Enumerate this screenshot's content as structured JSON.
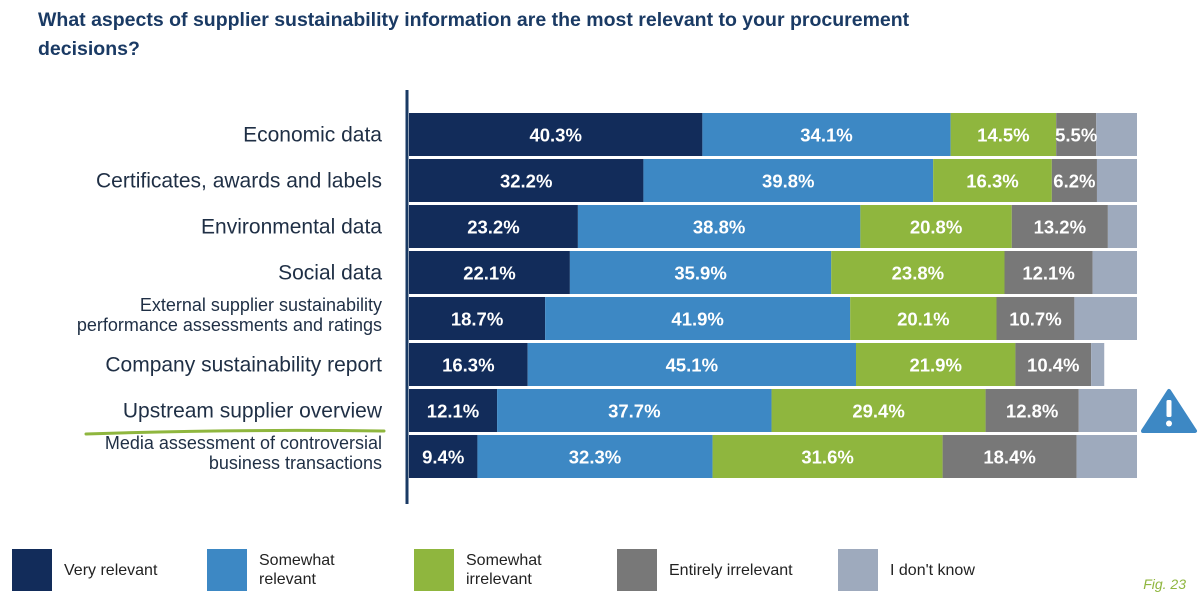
{
  "title": "What aspects of supplier sustainability information are the most relevant to your procurement decisions?",
  "figure_label": "Fig. 23",
  "colors": {
    "very_relevant": "#122c5a",
    "somewhat_relevant": "#3d88c4",
    "somewhat_irrelevant": "#8fb63e",
    "entirely_irrelevant": "#787878",
    "dont_know": "#9eaabd",
    "axis": "#1a3a64",
    "highlight_underline": "#8fb63e",
    "warning": "#3d88c4"
  },
  "legend": [
    {
      "key": "very_relevant",
      "label": "Very relevant"
    },
    {
      "key": "somewhat_relevant",
      "label": "Somewhat relevant"
    },
    {
      "key": "somewhat_irrelevant",
      "label": "Somewhat irrelevant"
    },
    {
      "key": "entirely_irrelevant",
      "label": "Entirely irrelevant"
    },
    {
      "key": "dont_know",
      "label": "I don't know"
    }
  ],
  "chart_data": {
    "type": "bar",
    "orientation": "horizontal",
    "stacked": true,
    "normalized_percent": true,
    "title": "What aspects of supplier sustainability information are the most relevant to your procurement decisions?",
    "xlim": [
      0,
      100
    ],
    "highlighted_category": "Upstream supplier overview",
    "warning_icon_category": "Upstream supplier overview",
    "categories": [
      "Economic data",
      "Certificates, awards and labels",
      "Environmental data",
      "Social data",
      "External supplier sustainability performance assessments and ratings",
      "Company sustainability report",
      "Upstream supplier overview",
      "Media assessment of controversial business transactions"
    ],
    "category_lines": [
      [
        "Economic data"
      ],
      [
        "Certificates, awards and labels"
      ],
      [
        "Environmental data"
      ],
      [
        "Social data"
      ],
      [
        "External supplier sustainability",
        "performance assessments and ratings"
      ],
      [
        "Company sustainability report"
      ],
      [
        "Upstream supplier overview"
      ],
      [
        "Media assessment of controversial",
        "business transactions"
      ]
    ],
    "series": [
      {
        "name": "Very relevant",
        "key": "very_relevant",
        "values": [
          40.3,
          32.2,
          23.2,
          22.1,
          18.7,
          16.3,
          12.1,
          9.4
        ]
      },
      {
        "name": "Somewhat relevant",
        "key": "somewhat_relevant",
        "values": [
          34.1,
          39.8,
          38.8,
          35.9,
          41.9,
          45.1,
          37.7,
          32.3
        ]
      },
      {
        "name": "Somewhat irrelevant",
        "key": "somewhat_irrelevant",
        "values": [
          14.5,
          16.3,
          20.8,
          23.8,
          20.1,
          21.9,
          29.4,
          31.6
        ]
      },
      {
        "name": "Entirely irrelevant",
        "key": "entirely_irrelevant",
        "values": [
          5.5,
          6.2,
          13.2,
          12.1,
          10.7,
          10.4,
          12.8,
          18.4
        ]
      },
      {
        "name": "I don't know",
        "key": "dont_know",
        "values": [
          5.6,
          5.5,
          4.0,
          6.1,
          8.6,
          1.8,
          8.0,
          8.3
        ]
      }
    ],
    "data_labels": [
      [
        "40.3%",
        "34.1%",
        "14.5%",
        "5.5%",
        ""
      ],
      [
        "32.2%",
        "39.8%",
        "16.3%",
        "6.2%",
        ""
      ],
      [
        "23.2%",
        "38.8%",
        "20.8%",
        "13.2%",
        ""
      ],
      [
        "22.1%",
        "35.9%",
        "23.8%",
        "12.1%",
        ""
      ],
      [
        "18.7%",
        "41.9%",
        "20.1%",
        "10.7%",
        ""
      ],
      [
        "16.3%",
        "45.1%",
        "21.9%",
        "10.4%",
        ""
      ],
      [
        "12.1%",
        "37.7%",
        "29.4%",
        "12.8%",
        ""
      ],
      [
        "9.4%",
        "32.3%",
        "31.6%",
        "18.4%",
        ""
      ]
    ]
  }
}
